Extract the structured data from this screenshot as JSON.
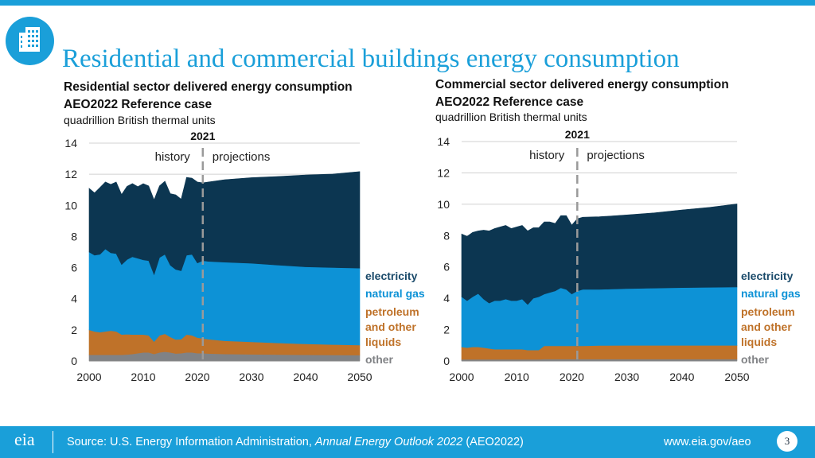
{
  "title": "Residential and commercial buildings energy consumption",
  "colors": {
    "accent": "#1a9fd9",
    "electricity": "#0c3651",
    "natural_gas": "#0d92d6",
    "petroleum": "#bf7229",
    "other": "#808285"
  },
  "footer": {
    "source_prefix": "Source: U.S. Energy Information Administration, ",
    "source_italic": "Annual Energy Outlook 2022",
    "source_suffix": " (AEO2022)",
    "url": "www.eia.gov/aeo",
    "page_number": "3",
    "logo_text": "eia"
  },
  "chart_data": [
    {
      "type": "area",
      "title_line1": "Residential sector delivered energy consumption",
      "title_line2": "AEO2022 Reference case",
      "units": "quadrillion British thermal units",
      "divider_year_label": "2021",
      "history_label": "history",
      "projections_label": "projections",
      "divider_x": 2021,
      "xlim": [
        2000,
        2050
      ],
      "ylim": [
        0,
        14
      ],
      "x_ticks": [
        "2000",
        "2010",
        "2020",
        "2030",
        "2040",
        "2050"
      ],
      "y_ticks": [
        "0",
        "2",
        "4",
        "6",
        "8",
        "10",
        "12",
        "14"
      ],
      "x": [
        2000,
        2001,
        2002,
        2003,
        2004,
        2005,
        2006,
        2007,
        2008,
        2009,
        2010,
        2011,
        2012,
        2013,
        2014,
        2015,
        2016,
        2017,
        2018,
        2019,
        2020,
        2021,
        2022,
        2025,
        2030,
        2035,
        2040,
        2045,
        2050
      ],
      "series": [
        {
          "name": "other",
          "values": [
            0.4,
            0.4,
            0.4,
            0.4,
            0.4,
            0.4,
            0.4,
            0.42,
            0.45,
            0.5,
            0.55,
            0.55,
            0.45,
            0.55,
            0.6,
            0.55,
            0.48,
            0.5,
            0.55,
            0.55,
            0.5,
            0.5,
            0.48,
            0.45,
            0.43,
            0.41,
            0.4,
            0.39,
            0.38
          ]
        },
        {
          "name": "petroleum and other liquids",
          "values": [
            1.6,
            1.5,
            1.45,
            1.5,
            1.55,
            1.5,
            1.3,
            1.3,
            1.25,
            1.2,
            1.15,
            1.1,
            0.8,
            1.1,
            1.15,
            1.0,
            0.9,
            0.9,
            1.15,
            1.1,
            1.0,
            0.95,
            0.92,
            0.85,
            0.8,
            0.75,
            0.7,
            0.67,
            0.64
          ]
        },
        {
          "name": "natural gas",
          "values": [
            5.0,
            4.9,
            5.0,
            5.3,
            5.0,
            5.0,
            4.5,
            4.8,
            5.0,
            4.9,
            4.8,
            4.8,
            4.3,
            5.0,
            5.1,
            4.6,
            4.5,
            4.4,
            5.1,
            5.2,
            4.8,
            5.0,
            5.0,
            5.05,
            5.05,
            5.0,
            4.95,
            4.95,
            4.95
          ]
        },
        {
          "name": "electricity",
          "values": [
            4.1,
            4.0,
            4.3,
            4.3,
            4.4,
            4.6,
            4.5,
            4.7,
            4.7,
            4.6,
            4.9,
            4.8,
            4.8,
            4.6,
            4.7,
            4.6,
            4.8,
            4.6,
            5.0,
            4.9,
            5.2,
            5.0,
            5.1,
            5.3,
            5.5,
            5.7,
            5.9,
            6.0,
            6.2
          ]
        }
      ],
      "legend": [
        {
          "label": "electricity",
          "color_key": "electricity"
        },
        {
          "label": "natural gas",
          "color_key": "natural_gas"
        },
        {
          "label": "petroleum and other liquids",
          "color_key": "petroleum"
        },
        {
          "label": "other",
          "color_key": "other"
        }
      ]
    },
    {
      "type": "area",
      "title_line1": "Commercial sector delivered energy consumption",
      "title_line2": "AEO2022 Reference case",
      "units": "quadrillion British thermal units",
      "divider_year_label": "2021",
      "history_label": "history",
      "projections_label": "projections",
      "divider_x": 2021,
      "xlim": [
        2000,
        2050
      ],
      "ylim": [
        0,
        14
      ],
      "x_ticks": [
        "2000",
        "2010",
        "2020",
        "2030",
        "2040",
        "2050"
      ],
      "y_ticks": [
        "0",
        "2",
        "4",
        "6",
        "8",
        "10",
        "12",
        "14"
      ],
      "x": [
        2000,
        2001,
        2002,
        2003,
        2004,
        2005,
        2006,
        2007,
        2008,
        2009,
        2010,
        2011,
        2012,
        2013,
        2014,
        2015,
        2016,
        2017,
        2018,
        2019,
        2020,
        2021,
        2022,
        2025,
        2030,
        2035,
        2040,
        2045,
        2050
      ],
      "series": [
        {
          "name": "other",
          "values": [
            0.1,
            0.1,
            0.1,
            0.1,
            0.1,
            0.1,
            0.1,
            0.1,
            0.1,
            0.1,
            0.1,
            0.1,
            0.1,
            0.1,
            0.1,
            0.12,
            0.12,
            0.12,
            0.12,
            0.12,
            0.12,
            0.12,
            0.12,
            0.12,
            0.12,
            0.12,
            0.12,
            0.12,
            0.12
          ]
        },
        {
          "name": "petroleum and other liquids",
          "values": [
            0.8,
            0.75,
            0.8,
            0.8,
            0.75,
            0.7,
            0.65,
            0.65,
            0.65,
            0.65,
            0.65,
            0.65,
            0.6,
            0.6,
            0.6,
            0.85,
            0.85,
            0.85,
            0.85,
            0.85,
            0.85,
            0.85,
            0.85,
            0.87,
            0.88,
            0.88,
            0.88,
            0.88,
            0.88
          ]
        },
        {
          "name": "natural gas",
          "values": [
            3.2,
            3.0,
            3.2,
            3.4,
            3.1,
            2.9,
            3.1,
            3.1,
            3.2,
            3.1,
            3.1,
            3.2,
            2.9,
            3.3,
            3.4,
            3.3,
            3.4,
            3.5,
            3.7,
            3.6,
            3.3,
            3.5,
            3.6,
            3.58,
            3.62,
            3.65,
            3.68,
            3.7,
            3.72
          ]
        },
        {
          "name": "electricity",
          "values": [
            4.0,
            4.1,
            4.1,
            4.0,
            4.4,
            4.6,
            4.6,
            4.7,
            4.7,
            4.6,
            4.7,
            4.7,
            4.7,
            4.5,
            4.4,
            4.6,
            4.5,
            4.3,
            4.6,
            4.7,
            4.4,
            4.6,
            4.6,
            4.63,
            4.7,
            4.8,
            4.96,
            5.1,
            5.3
          ]
        }
      ],
      "legend": [
        {
          "label": "electricity",
          "color_key": "electricity"
        },
        {
          "label": "natural gas",
          "color_key": "natural_gas"
        },
        {
          "label": "petroleum and other liquids",
          "color_key": "petroleum"
        },
        {
          "label": "other",
          "color_key": "other"
        }
      ]
    }
  ]
}
